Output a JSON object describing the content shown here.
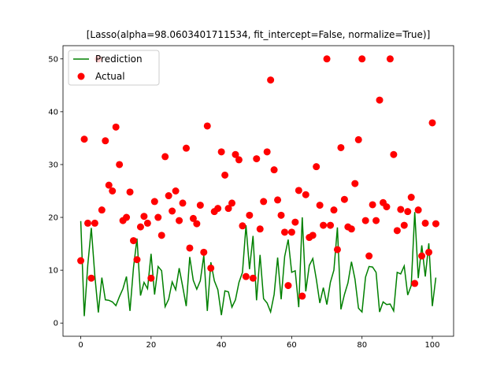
{
  "chart_data": {
    "type": "line",
    "title": "[Lasso(alpha=98.0603401711534, fit_intercept=False, normalize=True)]",
    "x": [
      0,
      1,
      2,
      3,
      4,
      5,
      6,
      7,
      8,
      9,
      10,
      11,
      12,
      13,
      14,
      15,
      16,
      17,
      18,
      19,
      20,
      21,
      22,
      23,
      24,
      25,
      26,
      27,
      28,
      29,
      30,
      31,
      32,
      33,
      34,
      35,
      36,
      37,
      38,
      39,
      40,
      41,
      42,
      43,
      44,
      45,
      46,
      47,
      48,
      49,
      50,
      51,
      52,
      53,
      54,
      55,
      56,
      57,
      58,
      59,
      60,
      61,
      62,
      63,
      64,
      65,
      66,
      67,
      68,
      69,
      70,
      71,
      72,
      73,
      74,
      75,
      76,
      77,
      78,
      79,
      80,
      81,
      82,
      83,
      84,
      85,
      86,
      87,
      88,
      89,
      90,
      91,
      92,
      93,
      94,
      95,
      96,
      97,
      98,
      99,
      100,
      101
    ],
    "series": [
      {
        "name": "Prediction",
        "type": "line",
        "color": "#008000",
        "values": [
          19.3,
          1.3,
          11,
          18,
          9,
          2,
          8.6,
          4.4,
          4.3,
          4,
          3.3,
          5,
          6.5,
          8.8,
          2.3,
          10.5,
          16,
          5.2,
          7.7,
          6.5,
          13.1,
          5.4,
          10.7,
          9.9,
          3.1,
          4.5,
          7.8,
          6.3,
          10.4,
          6.9,
          3.2,
          12.5,
          8.1,
          6.4,
          8,
          12.8,
          2.3,
          11.5,
          8,
          6.3,
          1.5,
          6.1,
          5.9,
          3,
          4.4,
          7.7,
          9.6,
          18.5,
          10.2,
          16.5,
          4.3,
          12.9,
          4.6,
          3.8,
          2.1,
          5.4,
          12.4,
          4.5,
          12.6,
          15.8,
          9.6,
          9.9,
          3,
          20,
          6,
          10.9,
          12.2,
          8.3,
          3.8,
          6.7,
          3.5,
          7.7,
          10,
          18.1,
          2.6,
          5.4,
          7.6,
          11.6,
          8.3,
          2.8,
          2.1,
          8.7,
          10.7,
          10.6,
          9.6,
          2.1,
          4,
          3.5,
          3.6,
          2.3,
          9.6,
          9.3,
          10.8,
          5.3,
          7.1,
          21,
          8.5,
          14.7,
          8.8,
          15.1,
          3.2,
          8.6
        ]
      },
      {
        "name": "Actual",
        "type": "scatter",
        "color": "#ff0000",
        "values": [
          11.8,
          34.8,
          18.9,
          8.5,
          18.9,
          50,
          21.4,
          34.5,
          26.1,
          25,
          37.1,
          30,
          19.4,
          20,
          24.8,
          15.6,
          12,
          18.2,
          20.2,
          18.9,
          8.5,
          23,
          20,
          16.6,
          31.5,
          24.1,
          21.2,
          25,
          19.4,
          22.7,
          33.1,
          14.2,
          19.8,
          18.8,
          22.3,
          13.4,
          37.3,
          10.4,
          21.1,
          21.7,
          32.4,
          28,
          21.7,
          22.7,
          31.9,
          30.9,
          18.4,
          8.8,
          20.4,
          8.5,
          31.1,
          17.8,
          23,
          32.4,
          46,
          29,
          23.3,
          20.4,
          17.2,
          7.1,
          17.2,
          19.1,
          25.1,
          5.1,
          24.3,
          16.2,
          16.6,
          29.6,
          22.3,
          18.5,
          50,
          18.5,
          21.4,
          13.9,
          33.2,
          23.4,
          18.2,
          17.8,
          26.4,
          34.7,
          50,
          19.4,
          12.7,
          22.4,
          19.4,
          42.2,
          22.8,
          22,
          50,
          31.9,
          17.5,
          21.5,
          18.5,
          21.1,
          23.8,
          7.5,
          21.4,
          12.7,
          18.9,
          13.4,
          37.9,
          18.8
        ]
      }
    ],
    "xlim": [
      -5.05,
      106.05
    ],
    "ylim": [
      -2.5,
      52.5
    ],
    "xticks": [
      0,
      20,
      40,
      60,
      80,
      100
    ],
    "yticks": [
      0,
      10,
      20,
      30,
      40,
      50
    ],
    "legend": "upper left"
  }
}
